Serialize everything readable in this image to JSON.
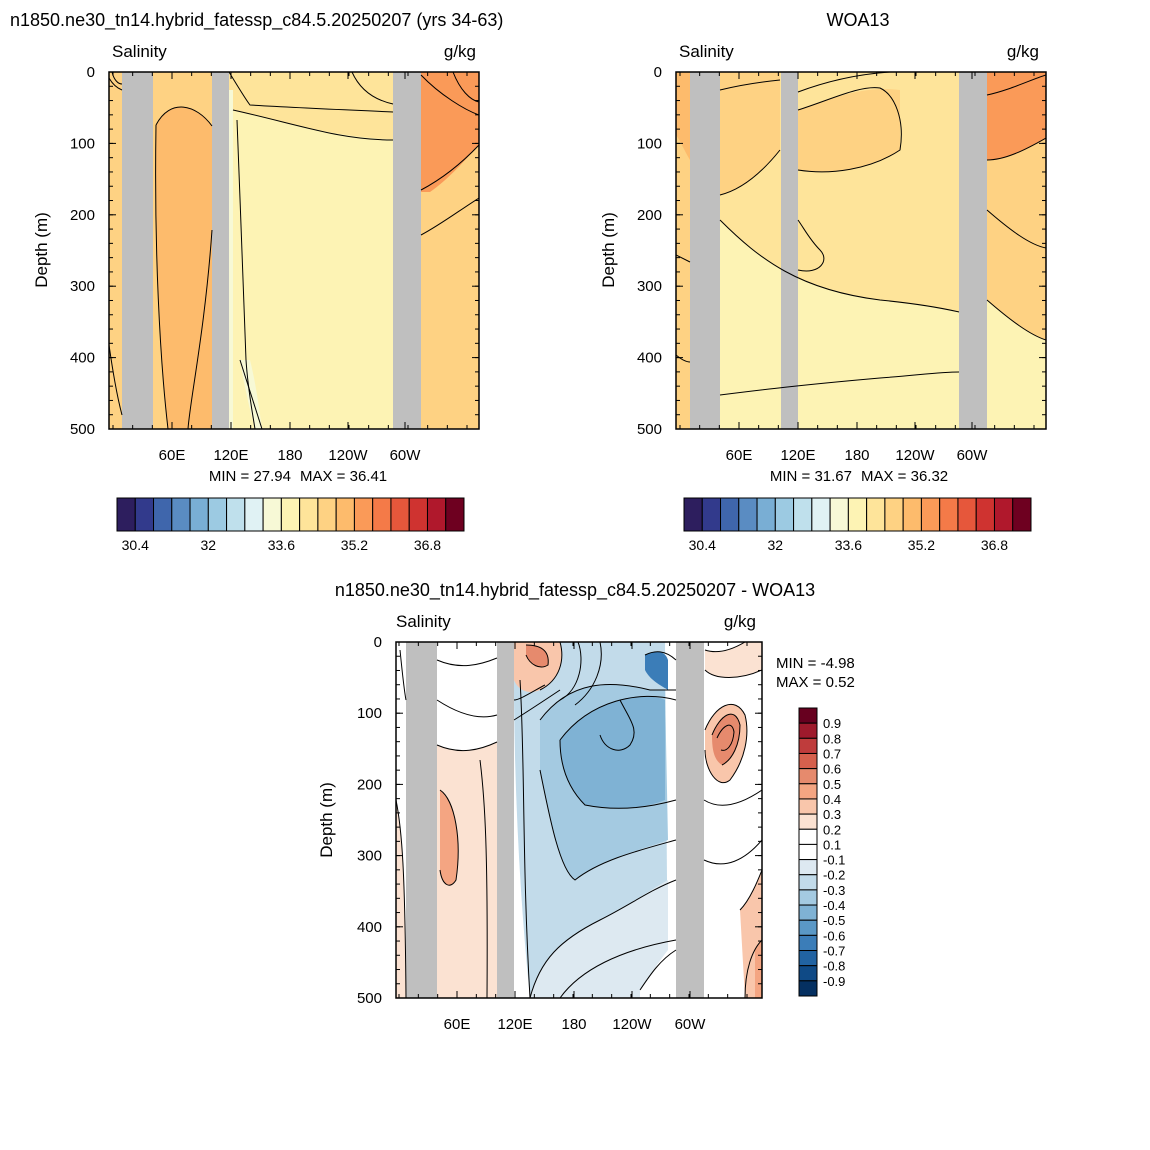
{
  "chart_data": [
    {
      "type": "heatmap",
      "title": "n1850.ne30_tn14.hybrid_fatessp_c84.5.20250207 (yrs 34-63)",
      "left_label": "Salinity",
      "right_label": "g/kg",
      "ylabel": "Depth (m)",
      "ylim": [
        0,
        500
      ],
      "y_ticks": [
        "0",
        "100",
        "200",
        "300",
        "400",
        "500"
      ],
      "x_ticks": [
        "60E",
        "120E",
        "180",
        "120W",
        "60W"
      ],
      "min_label": "MIN =  27.94",
      "max_label": "MAX =  36.41",
      "levels": [
        30.4,
        30.8,
        31.2,
        31.6,
        32.0,
        32.4,
        32.8,
        33.2,
        33.6,
        34.0,
        34.4,
        34.8,
        35.2,
        35.6,
        36.0,
        36.4,
        36.8,
        37.2,
        37.6
      ],
      "colorbar_labels": [
        "30.4",
        "32",
        "33.6",
        "35.2",
        "36.8"
      ],
      "colorbar_colors": [
        "#2d1e5e",
        "#323a8c",
        "#3f66ac",
        "#5a8cc2",
        "#79aed4",
        "#9ccae2",
        "#bfe0ec",
        "#e0f2f4",
        "#f7f9d6",
        "#fdf3b4",
        "#fee49a",
        "#fed283",
        "#fdbb6c",
        "#fa9a58",
        "#f47a48",
        "#e6573b",
        "#cf3330",
        "#b0182c",
        "#6e0020"
      ]
    },
    {
      "type": "heatmap",
      "title": "WOA13",
      "left_label": "Salinity",
      "right_label": "g/kg",
      "ylabel": "Depth (m)",
      "ylim": [
        0,
        500
      ],
      "y_ticks": [
        "0",
        "100",
        "200",
        "300",
        "400",
        "500"
      ],
      "x_ticks": [
        "60E",
        "120E",
        "180",
        "120W",
        "60W"
      ],
      "min_label": "MIN =  31.67",
      "max_label": "MAX =  36.32",
      "levels": [
        30.4,
        30.8,
        31.2,
        31.6,
        32.0,
        32.4,
        32.8,
        33.2,
        33.6,
        34.0,
        34.4,
        34.8,
        35.2,
        35.6,
        36.0,
        36.4,
        36.8,
        37.2,
        37.6
      ],
      "colorbar_labels": [
        "30.4",
        "32",
        "33.6",
        "35.2",
        "36.8"
      ],
      "colorbar_colors": [
        "#2d1e5e",
        "#323a8c",
        "#3f66ac",
        "#5a8cc2",
        "#79aed4",
        "#9ccae2",
        "#bfe0ec",
        "#e0f2f4",
        "#f7f9d6",
        "#fdf3b4",
        "#fee49a",
        "#fed283",
        "#fdbb6c",
        "#fa9a58",
        "#f47a48",
        "#e6573b",
        "#cf3330",
        "#b0182c",
        "#6e0020"
      ]
    },
    {
      "type": "heatmap",
      "title": "n1850.ne30_tn14.hybrid_fatessp_c84.5.20250207 - WOA13",
      "left_label": "Salinity",
      "right_label": "g/kg",
      "ylabel": "Depth (m)",
      "ylim": [
        0,
        500
      ],
      "y_ticks": [
        "0",
        "100",
        "200",
        "300",
        "400",
        "500"
      ],
      "x_ticks": [
        "60E",
        "120E",
        "180",
        "120W",
        "60W"
      ],
      "min_label": "MIN =  -4.98",
      "max_label": "MAX =   0.52",
      "levels": [
        0.9,
        0.8,
        0.7,
        0.6,
        0.5,
        0.4,
        0.3,
        0.2,
        0.1,
        -0.1,
        -0.2,
        -0.3,
        -0.4,
        -0.5,
        -0.6,
        -0.7,
        -0.8,
        -0.9
      ],
      "colorbar_labels": [
        "0.9",
        "0.8",
        "0.7",
        "0.6",
        "0.5",
        "0.4",
        "0.3",
        "0.2",
        "0.1",
        "-0.1",
        "-0.2",
        "-0.3",
        "-0.4",
        "-0.5",
        "-0.6",
        "-0.7",
        "-0.8",
        "-0.9"
      ],
      "colorbar_colors": [
        "#67001f",
        "#9e1a2c",
        "#bf3c3c",
        "#d6604d",
        "#e68a6d",
        "#f4a582",
        "#f9c6ab",
        "#fbe2d2",
        "#ffffff",
        "#ffffff",
        "#dde9f1",
        "#c2dbea",
        "#a4cae1",
        "#7fb2d4",
        "#5a98c6",
        "#3b7db8",
        "#2163a2",
        "#0f4a86",
        "#053061"
      ]
    }
  ]
}
